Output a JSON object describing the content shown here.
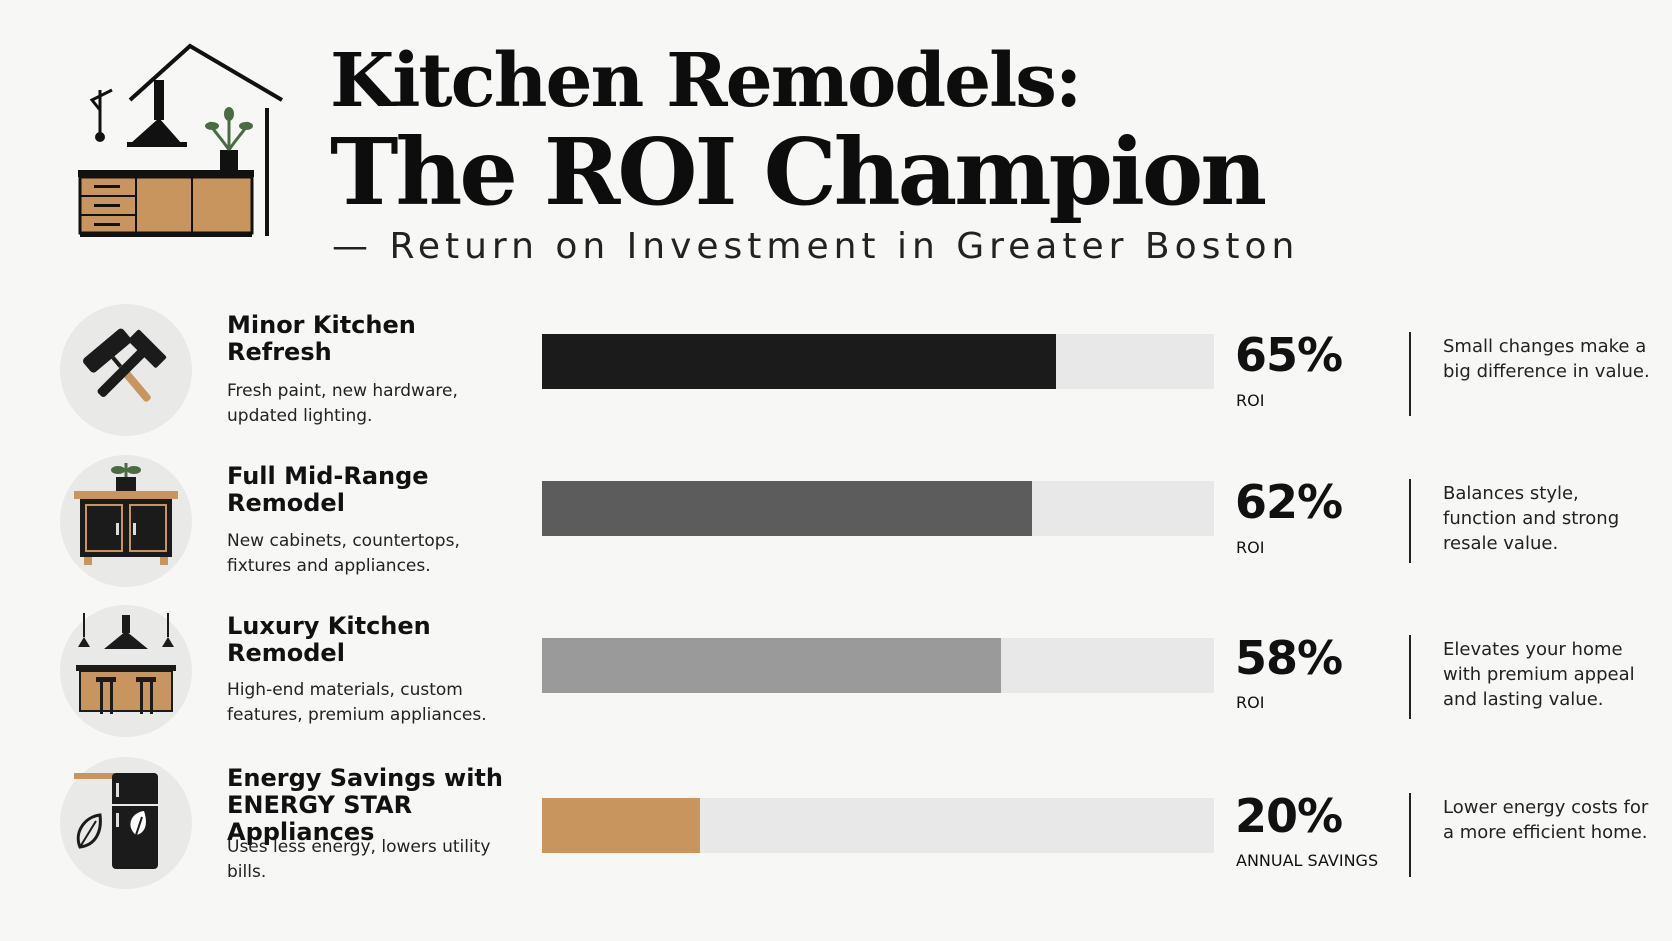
{
  "header": {
    "title_line1": "Kitchen Remodels:",
    "title_line2": "The ROI Champion",
    "subtitle": "— Return on Investment in Greater Boston"
  },
  "items": [
    {
      "title": "Minor Kitchen Refresh",
      "description": "Fresh paint, new hardware, updated lighting.",
      "value_label": "65%",
      "unit": "ROI",
      "note": "Small changes make a big difference in value.",
      "icon": "paint-roller-hammer-icon"
    },
    {
      "title": "Full Mid-Range Remodel",
      "description": "New cabinets, countertops, fixtures and appliances.",
      "value_label": "62%",
      "unit": "ROI",
      "note": "Balances style, function and strong resale value.",
      "icon": "cabinet-plant-icon"
    },
    {
      "title": "Luxury Kitchen Remodel",
      "description": "High-end materials, custom features, premium appliances.",
      "value_label": "58%",
      "unit": "ROI",
      "note": "Elevates your home with premium appeal and lasting value.",
      "icon": "kitchen-island-icon"
    },
    {
      "title": "Energy Savings with ENERGY STAR Appliances",
      "description": "Uses less energy, lowers utility bills.",
      "value_label": "20%",
      "unit": "ANNUAL SAVINGS",
      "note": "Lower energy costs for a more efficient home.",
      "icon": "fridge-leaf-icon"
    }
  ],
  "colors": {
    "bar_fills": [
      "#1b1b1b",
      "#5c5c5c",
      "#9a9a9a",
      "#c9955e"
    ],
    "track": "#e8e8e8",
    "background": "#f7f7f6"
  },
  "chart_data": {
    "type": "bar",
    "orientation": "horizontal",
    "categories": [
      "Minor Kitchen Refresh",
      "Full Mid-Range Remodel",
      "Luxury Kitchen Remodel",
      "Energy Savings with ENERGY STAR Appliances"
    ],
    "values": [
      65,
      62,
      58,
      20
    ],
    "xlim": [
      0,
      85
    ],
    "grid": false,
    "legend": "none"
  }
}
